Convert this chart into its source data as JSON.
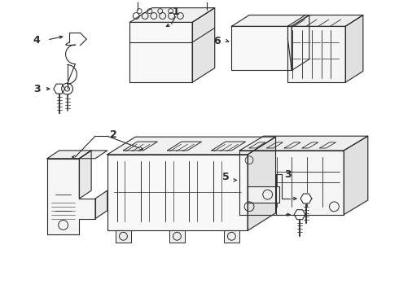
{
  "bg": "#ffffff",
  "lc": "#2a2a2a",
  "lw": 0.8,
  "fig_w": 4.9,
  "fig_h": 3.6,
  "dpi": 100
}
